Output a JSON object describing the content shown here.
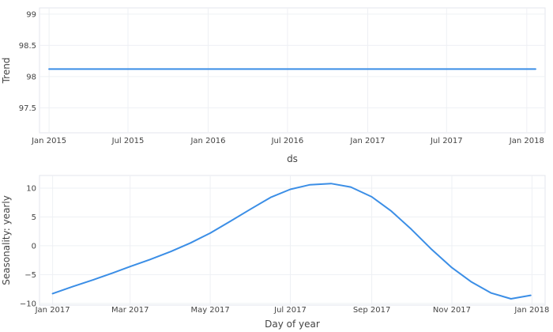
{
  "chart_data": [
    {
      "type": "line",
      "xlabel": "ds",
      "ylabel": "Trend",
      "x_tick_labels": [
        "Jan 2015",
        "Jul 2015",
        "Jan 2016",
        "Jul 2016",
        "Jan 2017",
        "Jul 2017",
        "Jan 2018"
      ],
      "y_tick_labels": [
        "97.5",
        "98",
        "98.5",
        "99"
      ],
      "y_ticks": [
        97.5,
        98,
        98.5,
        99
      ],
      "ylim": [
        97.1,
        99.1
      ],
      "grid": true,
      "series": [
        {
          "color": "#3b8ee6",
          "x": [
            "2015-01-01",
            "2018-01-21"
          ],
          "values": [
            98.12,
            98.12
          ]
        }
      ]
    },
    {
      "type": "line",
      "xlabel": "Day of year",
      "ylabel": "Seasonality: yearly",
      "x_tick_labels": [
        "Jan 2017",
        "Mar 2017",
        "May 2017",
        "Jul 2017",
        "Sep 2017",
        "Nov 2017",
        "Jan 2018"
      ],
      "y_tick_labels": [
        "10",
        "5",
        "0",
        "−5",
        "−10"
      ],
      "y_ticks": [
        10,
        5,
        0,
        -5,
        -10
      ],
      "ylim": [
        -10.3,
        12.2
      ],
      "grid": true,
      "series": [
        {
          "color": "#3b8ee6",
          "x": [
            "2017-01-01",
            "2017-01-16",
            "2017-02-01",
            "2017-02-16",
            "2017-03-01",
            "2017-03-16",
            "2017-04-01",
            "2017-04-16",
            "2017-05-01",
            "2017-05-16",
            "2017-06-01",
            "2017-06-16",
            "2017-07-01",
            "2017-07-16",
            "2017-08-01",
            "2017-08-16",
            "2017-09-01",
            "2017-09-16",
            "2017-10-01",
            "2017-10-16",
            "2017-11-01",
            "2017-11-16",
            "2017-12-01",
            "2017-12-16",
            "2017-12-31"
          ],
          "values": [
            -8.3,
            -7.1,
            -5.9,
            -4.7,
            -3.6,
            -2.4,
            -1.0,
            0.5,
            2.2,
            4.2,
            6.4,
            8.4,
            9.8,
            10.6,
            10.8,
            10.2,
            8.5,
            6.0,
            2.9,
            -0.5,
            -3.8,
            -6.3,
            -8.2,
            -9.2,
            -8.6
          ]
        }
      ]
    }
  ]
}
